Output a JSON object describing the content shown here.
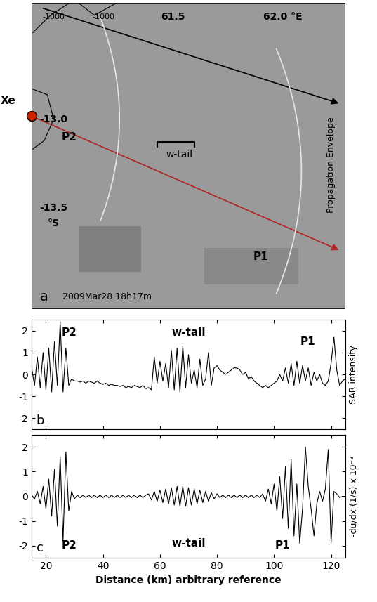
{
  "chart_data": [
    {
      "type": "map",
      "texts": [
        "-1000",
        "-1000",
        "61.5",
        "62.0 °E",
        "Xe",
        "-13.0",
        "P2",
        "w-tail",
        "-13.5",
        "°S",
        "P1",
        "Propagation Envelope",
        "2009Mar28 18h17m",
        "a"
      ]
    },
    {
      "type": "line",
      "y_label": "SAR intensity",
      "panel_label": "b",
      "annotations": [
        "P2",
        "w-tail",
        "P1"
      ],
      "tick_labels": "y",
      "xlim": [
        15,
        125
      ],
      "xticks": [
        20,
        40,
        60,
        80,
        100,
        120
      ],
      "ylim": [
        -2.5,
        2.5
      ],
      "yticks": [
        -2,
        -1,
        0,
        1,
        2
      ],
      "series": [
        {
          "color": "#000000",
          "x": [
            15,
            16,
            17,
            18,
            19,
            20,
            21,
            22,
            23,
            24,
            25,
            26,
            27,
            28,
            29,
            30,
            31,
            32,
            33,
            34,
            35,
            36,
            37,
            38,
            39,
            40,
            41,
            42,
            43,
            44,
            45,
            46,
            47,
            48,
            49,
            50,
            51,
            52,
            53,
            54,
            55,
            56,
            57,
            58,
            59,
            60,
            61,
            62,
            63,
            64,
            65,
            66,
            67,
            68,
            69,
            70,
            71,
            72,
            73,
            74,
            75,
            76,
            77,
            78,
            79,
            80,
            81,
            82,
            83,
            84,
            85,
            86,
            87,
            88,
            89,
            90,
            91,
            92,
            93,
            94,
            95,
            96,
            97,
            98,
            99,
            100,
            101,
            102,
            103,
            104,
            105,
            106,
            107,
            108,
            109,
            110,
            111,
            112,
            113,
            114,
            115,
            116,
            117,
            118,
            119,
            120,
            121,
            122,
            123,
            124,
            125
          ],
          "values": [
            0.3,
            -0.5,
            0.8,
            -0.6,
            1.0,
            -0.7,
            1.2,
            -0.8,
            1.5,
            -0.5,
            2.4,
            -0.8,
            1.2,
            -0.5,
            -0.2,
            -0.3,
            -0.3,
            -0.35,
            -0.3,
            -0.4,
            -0.3,
            -0.35,
            -0.4,
            -0.3,
            -0.4,
            -0.45,
            -0.4,
            -0.5,
            -0.45,
            -0.5,
            -0.5,
            -0.55,
            -0.5,
            -0.6,
            -0.55,
            -0.6,
            -0.5,
            -0.55,
            -0.6,
            -0.5,
            -0.65,
            -0.6,
            -0.7,
            0.8,
            -0.4,
            0.6,
            -0.3,
            0.5,
            -0.6,
            1.1,
            -0.7,
            1.2,
            -0.8,
            1.3,
            -0.6,
            0.9,
            -0.4,
            0.2,
            -0.6,
            0.7,
            -0.5,
            -0.2,
            1.0,
            -0.5,
            0.3,
            0.4,
            0.2,
            0.1,
            0.0,
            0.1,
            0.2,
            0.3,
            0.3,
            0.2,
            0.0,
            0.1,
            -0.2,
            -0.1,
            -0.3,
            -0.4,
            -0.5,
            -0.6,
            -0.5,
            -0.6,
            -0.5,
            -0.4,
            -0.3,
            0.0,
            -0.3,
            0.3,
            -0.4,
            0.5,
            -0.5,
            0.6,
            -0.4,
            0.4,
            -0.3,
            0.3,
            -0.5,
            0.1,
            -0.3,
            0.0,
            -0.4,
            -0.5,
            -0.3,
            0.5,
            1.7,
            0.2,
            -0.5,
            -0.3,
            -0.2
          ]
        }
      ]
    },
    {
      "type": "line",
      "x_label": "Distance (km) arbitrary reference",
      "y_label": "-du/dx (1/s) x 10⁻³",
      "panel_label": "c",
      "annotations": [
        "P2",
        "w-tail",
        "P1"
      ],
      "xlim": [
        15,
        125
      ],
      "xticks": [
        20,
        40,
        60,
        80,
        100,
        120
      ],
      "ylim": [
        -2.5,
        2.5
      ],
      "yticks": [
        -2,
        -1,
        0,
        1,
        2
      ],
      "series": [
        {
          "color": "#000000",
          "x": [
            15,
            16,
            17,
            18,
            19,
            20,
            21,
            22,
            23,
            24,
            25,
            26,
            27,
            28,
            29,
            30,
            31,
            32,
            33,
            34,
            35,
            36,
            37,
            38,
            39,
            40,
            41,
            42,
            43,
            44,
            45,
            46,
            47,
            48,
            49,
            50,
            51,
            52,
            53,
            54,
            55,
            56,
            57,
            58,
            59,
            60,
            61,
            62,
            63,
            64,
            65,
            66,
            67,
            68,
            69,
            70,
            71,
            72,
            73,
            74,
            75,
            76,
            77,
            78,
            79,
            80,
            81,
            82,
            83,
            84,
            85,
            86,
            87,
            88,
            89,
            90,
            91,
            92,
            93,
            94,
            95,
            96,
            97,
            98,
            99,
            100,
            101,
            102,
            103,
            104,
            105,
            106,
            107,
            108,
            109,
            110,
            111,
            112,
            113,
            114,
            115,
            116,
            117,
            118,
            119,
            120,
            121,
            122,
            123,
            124,
            125
          ],
          "values": [
            0.05,
            -0.1,
            0.2,
            -0.3,
            0.4,
            -0.5,
            0.7,
            -0.8,
            1.1,
            -1.2,
            1.6,
            -1.8,
            1.8,
            -0.6,
            0.2,
            -0.1,
            0.05,
            -0.05,
            0.05,
            -0.05,
            0.05,
            -0.05,
            0.05,
            -0.05,
            0.05,
            -0.05,
            0.05,
            -0.05,
            0.05,
            -0.05,
            0.05,
            -0.05,
            0.05,
            -0.05,
            0.05,
            -0.05,
            0.05,
            -0.05,
            0.05,
            -0.05,
            0.05,
            0.1,
            -0.15,
            0.2,
            -0.2,
            0.25,
            -0.25,
            0.3,
            -0.3,
            0.35,
            -0.35,
            0.4,
            -0.4,
            0.4,
            -0.4,
            0.35,
            -0.35,
            0.3,
            -0.3,
            0.25,
            -0.25,
            0.2,
            -0.2,
            0.15,
            -0.1,
            0.1,
            -0.05,
            0.05,
            -0.05,
            0.05,
            -0.05,
            0.05,
            -0.05,
            0.05,
            -0.05,
            0.05,
            -0.05,
            0.05,
            -0.05,
            0.05,
            -0.05,
            0.1,
            -0.2,
            0.3,
            -0.3,
            0.5,
            -0.6,
            0.8,
            -0.9,
            1.2,
            -1.3,
            1.5,
            -1.6,
            0.5,
            -1.9,
            -0.5,
            2.0,
            0.4,
            -0.5,
            -1.6,
            -0.3,
            0.2,
            -0.2,
            0.3,
            1.9,
            -1.9,
            0.2,
            0.1,
            -0.05,
            0.0,
            0.0
          ]
        }
      ]
    }
  ]
}
